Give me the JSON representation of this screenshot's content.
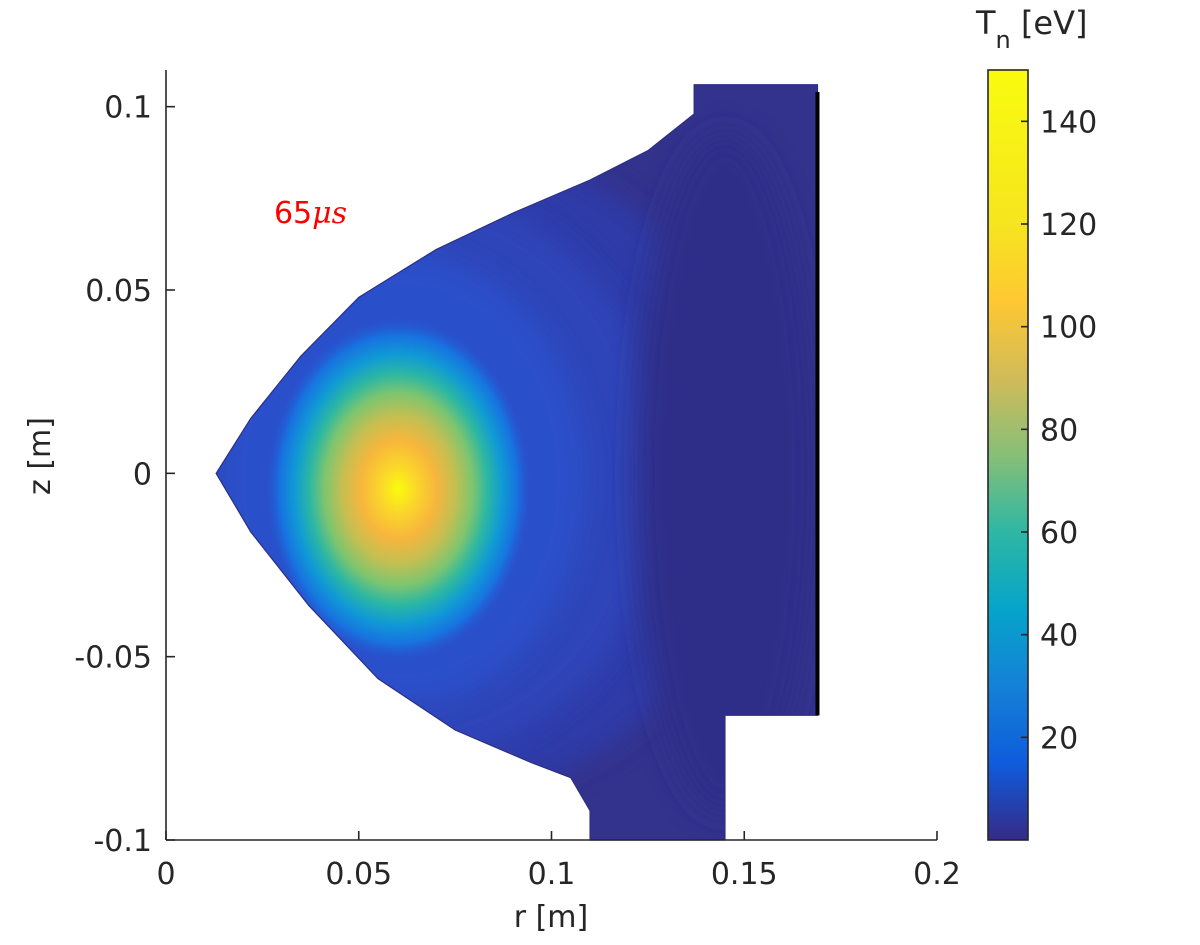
{
  "chart_data": {
    "type": "heatmap",
    "xlabel": "r [m]",
    "ylabel": "z [m]",
    "xlim": [
      0,
      0.2
    ],
    "ylim": [
      -0.1,
      0.11
    ],
    "xticks": [
      0,
      0.05,
      0.1,
      0.15,
      0.2
    ],
    "xtick_labels": [
      "0",
      "0.05",
      "0.1",
      "0.15",
      "0.2"
    ],
    "yticks": [
      -0.1,
      -0.05,
      0,
      0.05,
      0.1
    ],
    "ytick_labels": [
      "-0.1",
      "-0.05",
      "0",
      "0.05",
      "0.1"
    ],
    "annotation": {
      "text": "65",
      "unit": "μs",
      "r": 0.028,
      "z": 0.071,
      "color": "#ff0000"
    },
    "colorbar": {
      "title_main": "T",
      "title_sub": "n",
      "title_unit": " [eV]",
      "limits": [
        0,
        150
      ],
      "ticks": [
        20,
        40,
        60,
        80,
        100,
        120,
        140
      ],
      "tick_labels": [
        "20",
        "40",
        "60",
        "80",
        "100",
        "120",
        "140"
      ],
      "colormap": "parula"
    },
    "peak": {
      "r": 0.059,
      "z": -0.003,
      "value": 150
    },
    "plasma_boundary": [
      [
        0.137,
        0.098
      ],
      [
        0.125,
        0.088
      ],
      [
        0.11,
        0.08
      ],
      [
        0.09,
        0.071
      ],
      [
        0.07,
        0.061
      ],
      [
        0.05,
        0.048
      ],
      [
        0.035,
        0.032
      ],
      [
        0.022,
        0.015
      ],
      [
        0.013,
        0.0
      ],
      [
        0.022,
        -0.016
      ],
      [
        0.037,
        -0.036
      ],
      [
        0.055,
        -0.056
      ],
      [
        0.075,
        -0.07
      ],
      [
        0.095,
        -0.079
      ],
      [
        0.105,
        -0.083
      ],
      [
        0.11,
        -0.092
      ]
    ],
    "vessel_region": [
      [
        0.137,
        0.1
      ],
      [
        0.137,
        0.106
      ],
      [
        0.169,
        0.106
      ],
      [
        0.169,
        -0.066
      ],
      [
        0.145,
        -0.066
      ],
      [
        0.145,
        -0.1
      ],
      [
        0.11,
        -0.1
      ]
    ],
    "wall_line": {
      "r": 0.169,
      "z_range": [
        -0.066,
        0.104
      ],
      "color": "#000000"
    }
  }
}
